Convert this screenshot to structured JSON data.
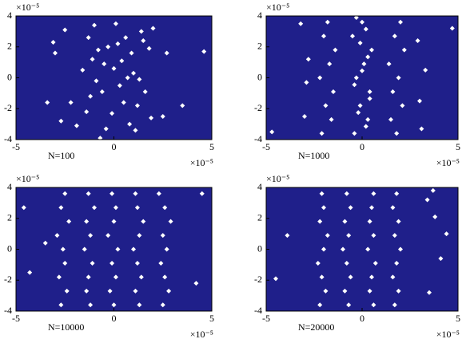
{
  "chart_data": [
    {
      "type": "scatter",
      "annotation": "N=100",
      "y_multiplier": "×10⁻⁵",
      "x_multiplier": "×10⁻⁵",
      "xlim": [
        -5,
        5
      ],
      "ylim": [
        -4,
        4
      ],
      "xticks": [
        -5,
        0,
        5
      ],
      "yticks": [
        -4,
        -2,
        0,
        2,
        4
      ],
      "plot_background": "#1f1f8a",
      "color": "#ffffff",
      "x": [
        -2.2,
        -1.6,
        -1.3,
        -1.0,
        -0.8,
        -0.6,
        -0.5,
        -0.3,
        -0.1,
        0.1,
        0.3,
        0.4,
        0.6,
        0.8,
        1.0,
        1.2,
        1.4,
        1.6,
        1.8,
        1.9,
        2.0,
        -1.9,
        -1.4,
        -1.1,
        -0.9,
        -0.4,
        0.2,
        0.5,
        0.9,
        1.3,
        1.5,
        -3.1,
        -3.0,
        -3.4,
        -2.5,
        2.7,
        3.5,
        4.6,
        2.5,
        -2.7,
        -0.7,
        0.0,
        0.7,
        1.1,
        -1.2
      ],
      "values": [
        -1.6,
        0.5,
        2.6,
        3.4,
        1.8,
        -0.9,
        0.9,
        2.0,
        -2.3,
        3.5,
        -0.5,
        1.1,
        2.6,
        -3.0,
        0.3,
        -1.8,
        3.0,
        -0.9,
        1.9,
        -2.6,
        3.2,
        -3.1,
        -2.2,
        1.2,
        -0.2,
        -3.3,
        2.2,
        -1.6,
        1.6,
        -0.1,
        2.4,
        2.3,
        1.6,
        -1.6,
        3.1,
        1.6,
        -1.8,
        1.7,
        -2.5,
        -2.8,
        -3.9,
        0.6,
        0.0,
        -3.4,
        -1.2
      ]
    },
    {
      "type": "scatter",
      "annotation": "N=1000",
      "y_multiplier": "×10⁻⁵",
      "x_multiplier": "×10⁻⁵",
      "xlim": [
        -5,
        5
      ],
      "ylim": [
        -4,
        4
      ],
      "xticks": [
        -5,
        0,
        5
      ],
      "yticks": [
        -4,
        -2,
        0,
        2,
        4
      ],
      "plot_background": "#1f1f8a",
      "color": "#ffffff",
      "x": [
        -2.1,
        -1.6,
        -1.9,
        -1.5,
        -2.2,
        -1.7,
        -1.4,
        -2.0,
        -1.8,
        -0.4,
        0.3,
        -0.1,
        0.4,
        -0.3,
        0.1,
        0.5,
        -0.5,
        0.0,
        0.2,
        -0.2,
        0.4,
        -0.4,
        0.0,
        0.3,
        -0.1,
        0.2,
        -0.3,
        1.8,
        1.5,
        2.1,
        1.6,
        1.9,
        1.4,
        2.2,
        1.7,
        2.0,
        -3.0,
        -2.8,
        -3.2,
        3.0,
        2.9,
        3.3,
        -4.7,
        4.7,
        -2.9,
        3.1
      ],
      "values": [
        -3.6,
        -2.7,
        -1.8,
        -0.9,
        0,
        0.9,
        1.8,
        2.7,
        3.6,
        -3.6,
        -2.7,
        -1.8,
        -0.9,
        0,
        0.9,
        1.8,
        2.7,
        3.6,
        -3.15,
        -2.25,
        -1.35,
        -0.45,
        0.45,
        1.35,
        2.25,
        3.15,
        3.9,
        -3.6,
        -2.7,
        -1.8,
        -0.9,
        0,
        0.9,
        1.8,
        2.7,
        3.6,
        -2.5,
        1.2,
        3.5,
        -1.5,
        2.4,
        0.5,
        -3.5,
        3.2,
        -0.3,
        -3.3
      ]
    },
    {
      "type": "scatter",
      "annotation": "N=10000",
      "y_multiplier": "×10⁻⁵",
      "x_multiplier": "×10⁻⁵",
      "xlim": [
        -5,
        5
      ],
      "ylim": [
        -4,
        4
      ],
      "xticks": [
        -5,
        0,
        5
      ],
      "yticks": [
        -4,
        -2,
        0,
        2,
        4
      ],
      "plot_background": "#1f1f8a",
      "color": "#ffffff",
      "x": [
        -2.7,
        -1.2,
        0.0,
        1.3,
        2.5,
        -2.4,
        -1.4,
        -0.2,
        1.1,
        2.8,
        -2.8,
        -1.3,
        0.1,
        1.4,
        2.6,
        -2.5,
        -1.1,
        -0.1,
        1.2,
        2.4,
        -2.6,
        -1.5,
        0.2,
        1.0,
        2.7,
        -2.9,
        -1.2,
        -0.3,
        1.3,
        2.5,
        -2.3,
        -1.4,
        0.0,
        1.5,
        2.9,
        -2.7,
        -1.0,
        0.1,
        1.2,
        2.6,
        -2.5,
        -1.3,
        -0.1,
        1.1,
        2.3,
        -4.6,
        -4.3,
        4.5,
        4.2,
        -3.5
      ],
      "values": [
        -3.6,
        -3.6,
        -3.6,
        -3.6,
        -3.6,
        -2.7,
        -2.7,
        -2.7,
        -2.7,
        -2.7,
        -1.8,
        -1.8,
        -1.8,
        -1.8,
        -1.8,
        -0.9,
        -0.9,
        -0.9,
        -0.9,
        -0.9,
        0,
        0,
        0,
        0,
        0,
        0.9,
        0.9,
        0.9,
        0.9,
        0.9,
        1.8,
        1.8,
        1.8,
        1.8,
        1.8,
        2.7,
        2.7,
        2.7,
        2.7,
        2.7,
        3.6,
        3.6,
        3.6,
        3.6,
        3.6,
        2.7,
        -1.5,
        3.6,
        -2.2,
        0.4
      ]
    },
    {
      "type": "scatter",
      "annotation": "N=20000",
      "y_multiplier": "×10⁻⁵",
      "x_multiplier": "×10⁻⁵",
      "xlim": [
        -5,
        5
      ],
      "ylim": [
        -4,
        4
      ],
      "xticks": [
        -5,
        0,
        5
      ],
      "yticks": [
        -4,
        -2,
        0,
        2,
        4
      ],
      "plot_background": "#1f1f8a",
      "color": "#ffffff",
      "x": [
        -2.2,
        -0.7,
        0.6,
        1.7,
        -1.9,
        -0.9,
        0.4,
        1.9,
        -2.1,
        -0.6,
        0.5,
        1.6,
        -2.3,
        -0.8,
        0.7,
        1.8,
        -2.0,
        -1.0,
        0.3,
        2.0,
        -1.8,
        -0.7,
        0.6,
        1.7,
        -2.2,
        -0.9,
        0.4,
        1.9,
        -2.0,
        -0.6,
        0.5,
        1.6,
        -2.1,
        -0.8,
        0.6,
        1.8,
        3.4,
        3.8,
        4.1,
        3.5,
        -3.9,
        -4.5,
        3.7,
        4.4
      ],
      "values": [
        -3.6,
        -3.6,
        -3.6,
        -3.6,
        -2.7,
        -2.7,
        -2.7,
        -2.7,
        -1.8,
        -1.8,
        -1.8,
        -1.8,
        -0.9,
        -0.9,
        -0.9,
        -0.9,
        0,
        0,
        0,
        0,
        0.9,
        0.9,
        0.9,
        0.9,
        1.8,
        1.8,
        1.8,
        1.8,
        2.7,
        2.7,
        2.7,
        2.7,
        3.6,
        3.6,
        3.6,
        3.6,
        3.2,
        2.1,
        -0.6,
        -2.8,
        0.9,
        -1.9,
        3.8,
        1.0
      ]
    }
  ]
}
